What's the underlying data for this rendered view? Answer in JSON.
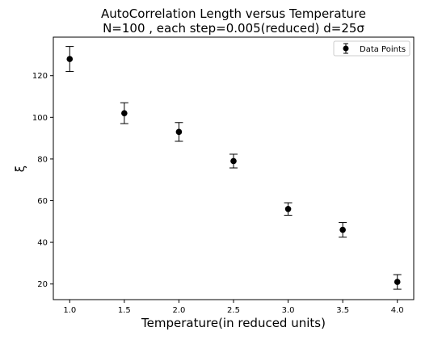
{
  "chart_data": {
    "type": "scatter",
    "title_line1": "AutoCorrelation Length versus Temperature",
    "title_line2": "N=100 , each step=0.005(reduced) d=25σ",
    "xlabel": "Temperature(in reduced units)",
    "ylabel": "ξ",
    "xlim": [
      0.85,
      4.15
    ],
    "ylim": [
      12.5,
      138.5
    ],
    "xticks": [
      1.0,
      1.5,
      2.0,
      2.5,
      3.0,
      3.5,
      4.0
    ],
    "xtick_labels": [
      "1.0",
      "1.5",
      "2.0",
      "2.5",
      "3.0",
      "3.5",
      "4.0"
    ],
    "yticks": [
      20,
      40,
      60,
      80,
      100,
      120
    ],
    "ytick_labels": [
      "20",
      "40",
      "60",
      "80",
      "100",
      "120"
    ],
    "grid": false,
    "legend_position": "top-right",
    "series": [
      {
        "name": "Data Points",
        "color": "#000000",
        "marker": "circle",
        "x": [
          1.0,
          1.5,
          2.0,
          2.5,
          3.0,
          3.5,
          4.0
        ],
        "y": [
          128,
          102,
          93,
          79,
          56,
          46,
          21
        ],
        "yerr": [
          6,
          5,
          4.5,
          3.3,
          3,
          3.5,
          3.5
        ]
      }
    ]
  }
}
